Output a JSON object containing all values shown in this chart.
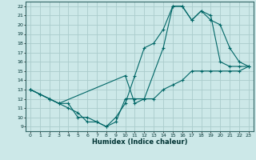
{
  "xlabel": "Humidex (Indice chaleur)",
  "bg_color": "#cce8e8",
  "grid_color": "#aacccc",
  "line_color": "#006666",
  "xlim": [
    -0.5,
    23.5
  ],
  "ylim": [
    8.5,
    22.5
  ],
  "xticks": [
    0,
    1,
    2,
    3,
    4,
    5,
    6,
    7,
    8,
    9,
    10,
    11,
    12,
    13,
    14,
    15,
    16,
    17,
    18,
    19,
    20,
    21,
    22,
    23
  ],
  "yticks": [
    9,
    10,
    11,
    12,
    13,
    14,
    15,
    16,
    17,
    18,
    19,
    20,
    21,
    22
  ],
  "line1_x": [
    0,
    1,
    2,
    3,
    4,
    5,
    6,
    7,
    8,
    9,
    10,
    11,
    12,
    13,
    14,
    15,
    16,
    17,
    18,
    19,
    20,
    21,
    22,
    23
  ],
  "line1_y": [
    13,
    12.5,
    12,
    11.5,
    11,
    10.5,
    9.5,
    9.5,
    9,
    10,
    11.5,
    14.5,
    17.5,
    18,
    19.5,
    22,
    22,
    20.5,
    21.5,
    21,
    16,
    15.5,
    15.5,
    15.5
  ],
  "line2_x": [
    0,
    1,
    2,
    3,
    4,
    5,
    6,
    7,
    8,
    9,
    10,
    11,
    12,
    13,
    14,
    15,
    16,
    17,
    18,
    19,
    20,
    21,
    22,
    23
  ],
  "line2_y": [
    13,
    12.5,
    12,
    11.5,
    11.5,
    10,
    10,
    9.5,
    9,
    9.5,
    12,
    12,
    12,
    12,
    13,
    13.5,
    14,
    15,
    15,
    15,
    15,
    15,
    15,
    15.5
  ],
  "line3_x": [
    0,
    2,
    3,
    10,
    11,
    12,
    14,
    15,
    16,
    17,
    18,
    19,
    20,
    21,
    22,
    23
  ],
  "line3_y": [
    13,
    12,
    11.5,
    14.5,
    11.5,
    12,
    17.5,
    22,
    22,
    20.5,
    21.5,
    20.5,
    20,
    17.5,
    16,
    15.5
  ]
}
